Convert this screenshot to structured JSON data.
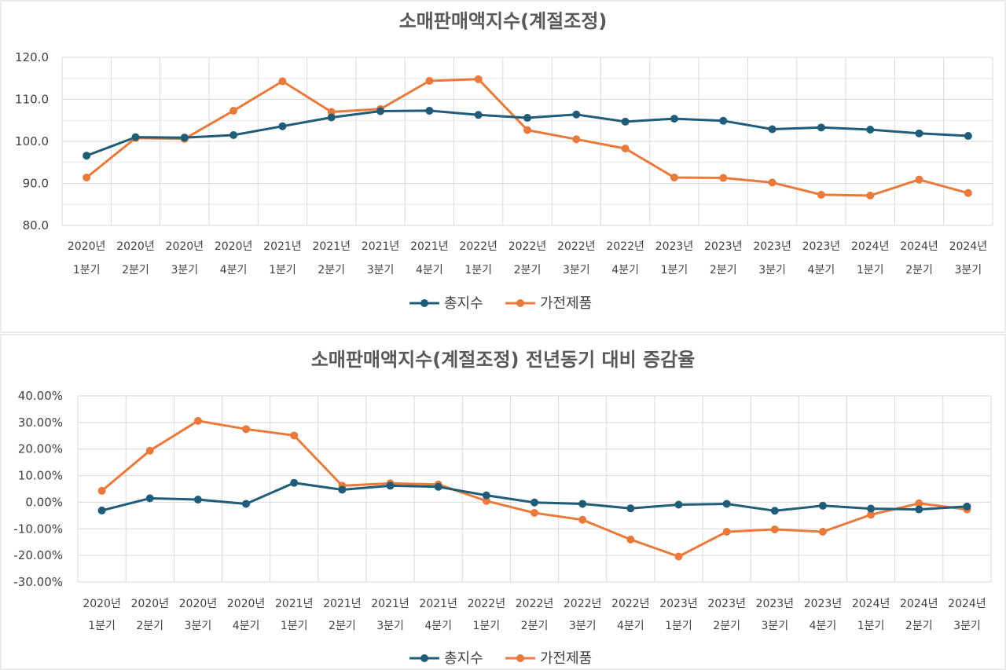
{
  "chart_data": [
    {
      "type": "line",
      "title": "소매판매액지수(계절조정)",
      "categories": [
        [
          "2020년",
          "1분기"
        ],
        [
          "2020년",
          "2분기"
        ],
        [
          "2020년",
          "3분기"
        ],
        [
          "2020년",
          "4분기"
        ],
        [
          "2021년",
          "1분기"
        ],
        [
          "2021년",
          "2분기"
        ],
        [
          "2021년",
          "3분기"
        ],
        [
          "2021년",
          "4분기"
        ],
        [
          "2022년",
          "1분기"
        ],
        [
          "2022년",
          "2분기"
        ],
        [
          "2022년",
          "3분기"
        ],
        [
          "2022년",
          "4분기"
        ],
        [
          "2023년",
          "1분기"
        ],
        [
          "2023년",
          "2분기"
        ],
        [
          "2023년",
          "3분기"
        ],
        [
          "2023년",
          "4분기"
        ],
        [
          "2024년",
          "1분기"
        ],
        [
          "2024년",
          "2분기"
        ],
        [
          "2024년",
          "3분기"
        ]
      ],
      "ylim": [
        80,
        120
      ],
      "yticks": [
        "80.0",
        "90.0",
        "100.0",
        "110.0",
        "120.0"
      ],
      "grid": true,
      "legend": "bottom",
      "series": [
        {
          "name": "총지수",
          "color": "#1f5c7a",
          "values": [
            96.6,
            101.0,
            100.9,
            101.5,
            103.6,
            105.7,
            107.2,
            107.3,
            106.3,
            105.6,
            106.4,
            104.7,
            105.4,
            104.9,
            102.9,
            103.3,
            102.8,
            101.9,
            101.3
          ]
        },
        {
          "name": "가전제품",
          "color": "#e97a3b",
          "values": [
            91.4,
            100.8,
            100.6,
            107.3,
            114.3,
            107.0,
            107.7,
            114.4,
            114.8,
            102.7,
            100.5,
            98.3,
            91.4,
            91.3,
            90.2,
            87.3,
            87.1,
            90.9,
            87.7
          ]
        }
      ]
    },
    {
      "type": "line",
      "title": "소매판매액지수(계절조정) 전년동기 대비 증감율",
      "categories": [
        [
          "2020년",
          "1분기"
        ],
        [
          "2020년",
          "2분기"
        ],
        [
          "2020년",
          "3분기"
        ],
        [
          "2020년",
          "4분기"
        ],
        [
          "2021년",
          "1분기"
        ],
        [
          "2021년",
          "2분기"
        ],
        [
          "2021년",
          "3분기"
        ],
        [
          "2021년",
          "4분기"
        ],
        [
          "2022년",
          "1분기"
        ],
        [
          "2022년",
          "2분기"
        ],
        [
          "2022년",
          "3분기"
        ],
        [
          "2022년",
          "4분기"
        ],
        [
          "2023년",
          "1분기"
        ],
        [
          "2023년",
          "2분기"
        ],
        [
          "2023년",
          "3분기"
        ],
        [
          "2023년",
          "4분기"
        ],
        [
          "2024년",
          "1분기"
        ],
        [
          "2024년",
          "2분기"
        ],
        [
          "2024년",
          "3분기"
        ]
      ],
      "ylim": [
        -30,
        40
      ],
      "yticks": [
        "-30.00%",
        "-20.00%",
        "-10.00%",
        "0.00%",
        "10.00%",
        "20.00%",
        "30.00%",
        "40.00%"
      ],
      "grid": true,
      "legend": "bottom",
      "series": [
        {
          "name": "총지수",
          "color": "#1f5c7a",
          "values": [
            -3.1,
            1.5,
            1.0,
            -0.6,
            7.3,
            4.7,
            6.2,
            5.8,
            2.6,
            -0.1,
            -0.6,
            -2.3,
            -0.9,
            -0.6,
            -3.2,
            -1.3,
            -2.4,
            -2.7,
            -1.6
          ]
        },
        {
          "name": "가전제품",
          "color": "#e97a3b",
          "values": [
            4.3,
            19.4,
            30.6,
            27.5,
            25.1,
            6.2,
            7.1,
            6.7,
            0.5,
            -4.0,
            -6.6,
            -14.0,
            -20.4,
            -11.1,
            -10.2,
            -11.1,
            -4.7,
            -0.4,
            -2.7
          ]
        }
      ]
    }
  ]
}
